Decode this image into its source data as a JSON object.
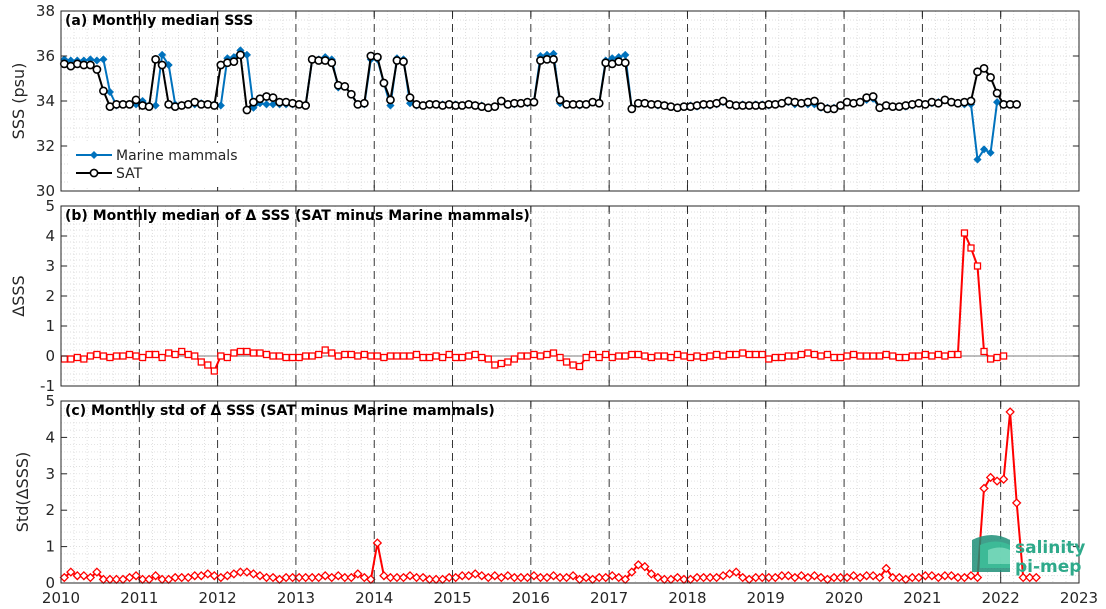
{
  "chart_data": [
    {
      "type": "line",
      "title": "(a) Monthly median SSS",
      "ylabel": "SSS (psu)",
      "ylim": [
        30,
        38
      ],
      "yticks": [
        30,
        32,
        34,
        36,
        38
      ],
      "xlim": [
        2010,
        2023
      ],
      "xticks": [
        2010,
        2011,
        2012,
        2013,
        2014,
        2015,
        2016,
        2017,
        2018,
        2019,
        2020,
        2021,
        2022,
        2023
      ],
      "grid": "minor dotted, yearly dashed verticals",
      "legend": "lower-left",
      "x_start": 2010.042,
      "x_step": 0.0833,
      "series": [
        {
          "name": "Marine mammals",
          "color": "#0072BD",
          "marker": "diamond",
          "values": [
            35.85,
            35.8,
            35.8,
            35.8,
            35.85,
            35.8,
            35.85,
            34.4,
            33.8,
            33.85,
            33.85,
            33.85,
            34.0,
            33.8,
            33.8,
            36.05,
            35.6,
            33.85,
            33.8,
            33.85,
            33.85,
            33.9,
            33.85,
            33.85,
            33.8,
            35.9,
            35.95,
            36.25,
            36.05,
            33.7,
            33.9,
            33.85,
            33.85,
            33.85,
            33.85,
            33.85,
            33.85,
            33.8,
            35.85,
            35.85,
            35.95,
            35.85,
            34.6,
            34.65,
            34.3,
            33.85,
            33.85,
            35.85,
            35.85,
            34.8,
            33.8,
            35.9,
            35.85,
            33.9,
            33.8,
            33.8,
            33.85,
            33.85,
            33.85,
            33.85,
            33.85,
            33.8,
            33.85,
            33.8,
            33.8,
            33.7,
            33.75,
            34.0,
            33.85,
            33.85,
            33.9,
            33.9,
            33.95,
            36.0,
            36.05,
            36.1,
            33.9,
            33.85,
            33.85,
            33.8,
            33.85,
            33.95,
            33.9,
            35.8,
            35.9,
            35.95,
            36.05,
            33.65,
            33.9,
            33.9,
            33.85,
            33.8,
            33.8,
            33.75,
            33.7,
            33.75,
            33.8,
            33.75,
            33.8,
            33.8,
            33.85,
            33.95,
            33.85,
            33.8,
            33.85,
            33.8,
            33.85,
            33.85,
            33.8,
            33.85,
            33.9,
            33.95,
            33.85,
            33.9,
            33.85,
            33.85,
            33.7,
            33.7,
            33.7,
            33.8,
            33.95,
            33.9,
            33.95,
            34.05,
            34.1,
            33.7,
            33.8,
            33.75,
            33.75,
            33.75,
            33.8,
            33.9,
            33.85,
            33.9,
            33.95,
            34.05,
            33.95,
            33.9,
            33.85,
            33.85,
            31.4,
            31.85,
            31.7,
            33.95,
            33.85,
            33.85,
            33.85
          ]
        },
        {
          "name": "SAT",
          "color": "#000000",
          "marker": "circle",
          "values": [
            35.65,
            35.55,
            35.65,
            35.6,
            35.6,
            35.4,
            34.45,
            33.75,
            33.85,
            33.85,
            33.85,
            34.05,
            33.8,
            33.75,
            35.85,
            35.6,
            33.85,
            33.75,
            33.8,
            33.85,
            33.95,
            33.85,
            33.85,
            33.8,
            35.6,
            35.7,
            35.75,
            36.05,
            33.6,
            33.95,
            34.1,
            34.2,
            34.15,
            33.95,
            33.95,
            33.9,
            33.85,
            33.8,
            35.85,
            35.8,
            35.8,
            35.7,
            34.7,
            34.65,
            34.3,
            33.85,
            33.9,
            36.0,
            35.95,
            34.8,
            34.05,
            35.8,
            35.75,
            34.15,
            33.85,
            33.8,
            33.85,
            33.85,
            33.8,
            33.85,
            33.8,
            33.8,
            33.85,
            33.8,
            33.75,
            33.7,
            33.75,
            34.0,
            33.85,
            33.9,
            33.9,
            33.95,
            33.95,
            35.8,
            35.85,
            35.85,
            34.05,
            33.85,
            33.85,
            33.85,
            33.85,
            33.95,
            33.9,
            35.7,
            35.65,
            35.75,
            35.7,
            33.65,
            33.9,
            33.9,
            33.85,
            33.85,
            33.8,
            33.75,
            33.7,
            33.75,
            33.75,
            33.8,
            33.85,
            33.85,
            33.9,
            34.0,
            33.85,
            33.8,
            33.8,
            33.8,
            33.8,
            33.8,
            33.85,
            33.85,
            33.9,
            34.0,
            33.95,
            33.9,
            33.95,
            34.0,
            33.75,
            33.65,
            33.65,
            33.8,
            33.95,
            33.9,
            33.95,
            34.15,
            34.2,
            33.7,
            33.8,
            33.75,
            33.75,
            33.8,
            33.85,
            33.9,
            33.85,
            33.95,
            33.9,
            34.05,
            33.95,
            33.9,
            33.95,
            34.0,
            35.3,
            35.45,
            35.05,
            34.35,
            33.85,
            33.85,
            33.85
          ]
        }
      ]
    },
    {
      "type": "line",
      "title": "(b) Monthly median of Δ SSS (SAT minus Marine mammals)",
      "ylabel": "ΔSSS",
      "ylim": [
        -1,
        5
      ],
      "yticks": [
        -1,
        0,
        1,
        2,
        3,
        4,
        5
      ],
      "xlim": [
        2010,
        2023
      ],
      "xticks": [
        2010,
        2011,
        2012,
        2013,
        2014,
        2015,
        2016,
        2017,
        2018,
        2019,
        2020,
        2021,
        2022,
        2023
      ],
      "grid": "minor dotted, yearly dashed verticals",
      "x_start": 2010.042,
      "x_step": 0.0833,
      "series": [
        {
          "color": "#FF0000",
          "marker": "square",
          "values": [
            -0.1,
            -0.1,
            -0.05,
            -0.1,
            0.0,
            0.05,
            0.0,
            -0.05,
            0.0,
            0.0,
            0.05,
            0.0,
            -0.05,
            0.05,
            0.05,
            -0.05,
            0.1,
            0.05,
            0.15,
            0.05,
            0.0,
            -0.2,
            -0.3,
            -0.5,
            0.0,
            -0.05,
            0.1,
            0.15,
            0.15,
            0.1,
            0.1,
            0.05,
            0.0,
            0.0,
            -0.05,
            -0.05,
            -0.05,
            0.0,
            0.0,
            0.05,
            0.2,
            0.1,
            0.0,
            0.05,
            0.05,
            0.0,
            0.05,
            0.0,
            0.0,
            -0.05,
            0.0,
            0.0,
            0.0,
            0.0,
            0.05,
            -0.05,
            -0.05,
            0.0,
            -0.05,
            0.05,
            -0.05,
            -0.05,
            0.0,
            0.05,
            -0.05,
            -0.1,
            -0.3,
            -0.25,
            -0.2,
            -0.1,
            0.0,
            0.0,
            0.05,
            0.0,
            0.05,
            0.1,
            -0.05,
            -0.2,
            -0.3,
            -0.35,
            -0.05,
            0.05,
            -0.05,
            0.05,
            -0.05,
            0.0,
            0.0,
            0.05,
            0.05,
            0.0,
            -0.05,
            0.0,
            0.0,
            -0.05,
            0.05,
            0.0,
            -0.05,
            0.0,
            -0.05,
            0.0,
            0.05,
            0.0,
            0.05,
            0.05,
            0.1,
            0.05,
            0.05,
            0.05,
            -0.1,
            -0.05,
            -0.05,
            0.0,
            0.0,
            0.05,
            0.1,
            0.05,
            0.0,
            0.05,
            -0.05,
            -0.05,
            0.0,
            0.05,
            0.0,
            0.0,
            0.0,
            0.0,
            0.05,
            0.0,
            -0.05,
            -0.05,
            0.0,
            0.0,
            0.05,
            0.0,
            0.05,
            0.0,
            0.05,
            0.05,
            4.1,
            3.6,
            3.0,
            0.15,
            -0.1,
            -0.05,
            0.0
          ]
        }
      ]
    },
    {
      "type": "line",
      "title": "(c) Monthly std of Δ SSS (SAT minus Marine mammals)",
      "ylabel": "Std(ΔSSS)",
      "ylim": [
        0,
        5
      ],
      "yticks": [
        0,
        1,
        2,
        3,
        4,
        5
      ],
      "xlim": [
        2010,
        2023
      ],
      "xticks": [
        2010,
        2011,
        2012,
        2013,
        2014,
        2015,
        2016,
        2017,
        2018,
        2019,
        2020,
        2021,
        2022,
        2023
      ],
      "xticklabels": [
        "2010",
        "2011",
        "2012",
        "2013",
        "2014",
        "2015",
        "2016",
        "2017",
        "2018",
        "2019",
        "2020",
        "2021",
        "2022",
        "2023"
      ],
      "grid": "minor dotted, yearly dashed verticals",
      "x_start": 2010.042,
      "x_step": 0.0833,
      "series": [
        {
          "color": "#FF0000",
          "marker": "diamond",
          "values": [
            0.15,
            0.3,
            0.2,
            0.2,
            0.15,
            0.3,
            0.1,
            0.1,
            0.1,
            0.1,
            0.15,
            0.2,
            0.1,
            0.1,
            0.2,
            0.1,
            0.1,
            0.15,
            0.15,
            0.15,
            0.2,
            0.2,
            0.25,
            0.2,
            0.15,
            0.2,
            0.25,
            0.3,
            0.3,
            0.25,
            0.2,
            0.15,
            0.15,
            0.1,
            0.15,
            0.15,
            0.15,
            0.15,
            0.15,
            0.15,
            0.2,
            0.15,
            0.2,
            0.15,
            0.15,
            0.25,
            0.15,
            0.1,
            1.1,
            0.2,
            0.15,
            0.15,
            0.15,
            0.2,
            0.15,
            0.15,
            0.1,
            0.1,
            0.1,
            0.15,
            0.15,
            0.2,
            0.2,
            0.25,
            0.2,
            0.15,
            0.2,
            0.15,
            0.2,
            0.15,
            0.15,
            0.15,
            0.2,
            0.15,
            0.15,
            0.2,
            0.15,
            0.15,
            0.2,
            0.1,
            0.15,
            0.1,
            0.15,
            0.15,
            0.2,
            0.15,
            0.1,
            0.3,
            0.5,
            0.45,
            0.25,
            0.15,
            0.1,
            0.1,
            0.15,
            0.1,
            0.1,
            0.15,
            0.15,
            0.15,
            0.15,
            0.2,
            0.25,
            0.3,
            0.15,
            0.1,
            0.15,
            0.15,
            0.15,
            0.15,
            0.2,
            0.2,
            0.15,
            0.2,
            0.15,
            0.2,
            0.15,
            0.1,
            0.15,
            0.15,
            0.15,
            0.2,
            0.15,
            0.2,
            0.2,
            0.15,
            0.4,
            0.15,
            0.15,
            0.1,
            0.15,
            0.15,
            0.2,
            0.2,
            0.15,
            0.2,
            0.2,
            0.15,
            0.15,
            0.2,
            0.15,
            2.6,
            2.9,
            2.8,
            2.85,
            4.7,
            2.2,
            0.15,
            0.15,
            0.15
          ]
        }
      ]
    }
  ],
  "watermark": {
    "line1": "salinity",
    "line2": "pi-mep",
    "color": "#2ea98a"
  }
}
